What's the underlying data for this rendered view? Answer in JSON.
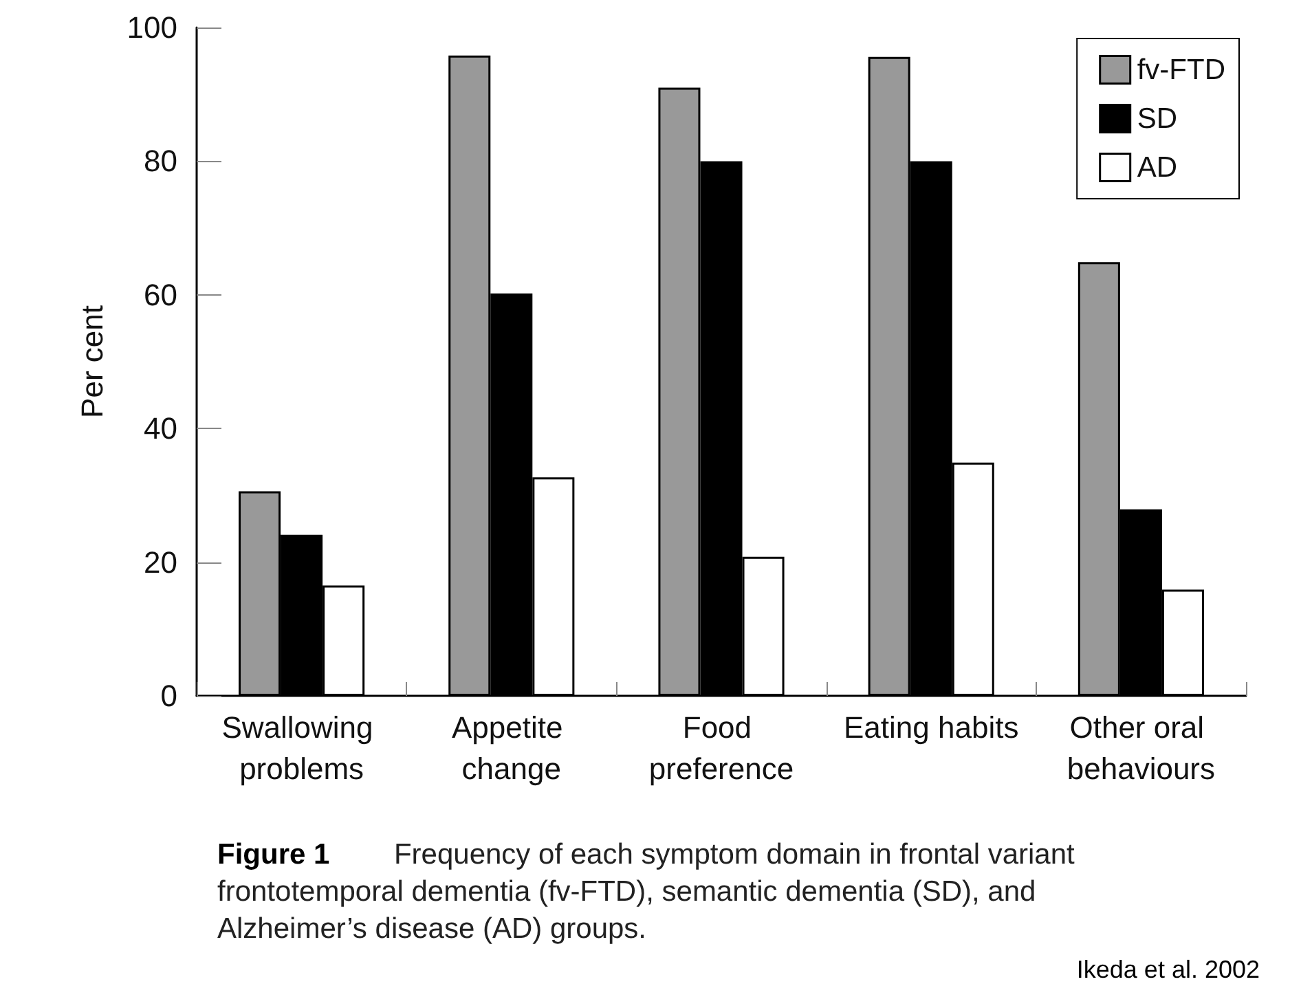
{
  "chart_data": {
    "type": "bar",
    "ylabel": "Per cent",
    "categories": [
      "Swallowing problems",
      "Appetite change",
      "Food preference",
      "Eating habits",
      "Other oral behaviours"
    ],
    "series": [
      {
        "name": "fv-FTD",
        "color": "#999999",
        "values": [
          30.6,
          95.8,
          91,
          95.6,
          64.9
        ]
      },
      {
        "name": "SD",
        "color": "#000000",
        "values": [
          24.1,
          60.2,
          80,
          80,
          27.9
        ]
      },
      {
        "name": "AD",
        "color": "#ffffff",
        "values": [
          16.5,
          32.7,
          20.8,
          34.9,
          15.9
        ]
      }
    ],
    "ylim": [
      0,
      100
    ],
    "yticks": [
      0,
      20,
      40,
      60,
      80,
      100
    ],
    "grid": false,
    "legend": "top right",
    "annotations": [
      "Figure 1",
      "Frequency of each symptom domain in frontal variant frontotemporal dementia (fv-FTD), semantic dementia (SD), and Alzheimer’s disease (AD) groups.",
      "Ikeda et al. 2002"
    ]
  }
}
